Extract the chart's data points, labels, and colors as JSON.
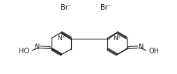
{
  "bg_color": "#ffffff",
  "line_color": "#1a1a1a",
  "text_color": "#1a1a1a",
  "br1_text": "Br⁻",
  "br2_text": "Br⁻",
  "ho_left": "HO",
  "n_left": "N",
  "n_plus_left": "N⁺",
  "n_plus_right": "N⁺",
  "n_right": "N",
  "oh_right": "OH",
  "font_size": 7.0,
  "lw": 0.85
}
